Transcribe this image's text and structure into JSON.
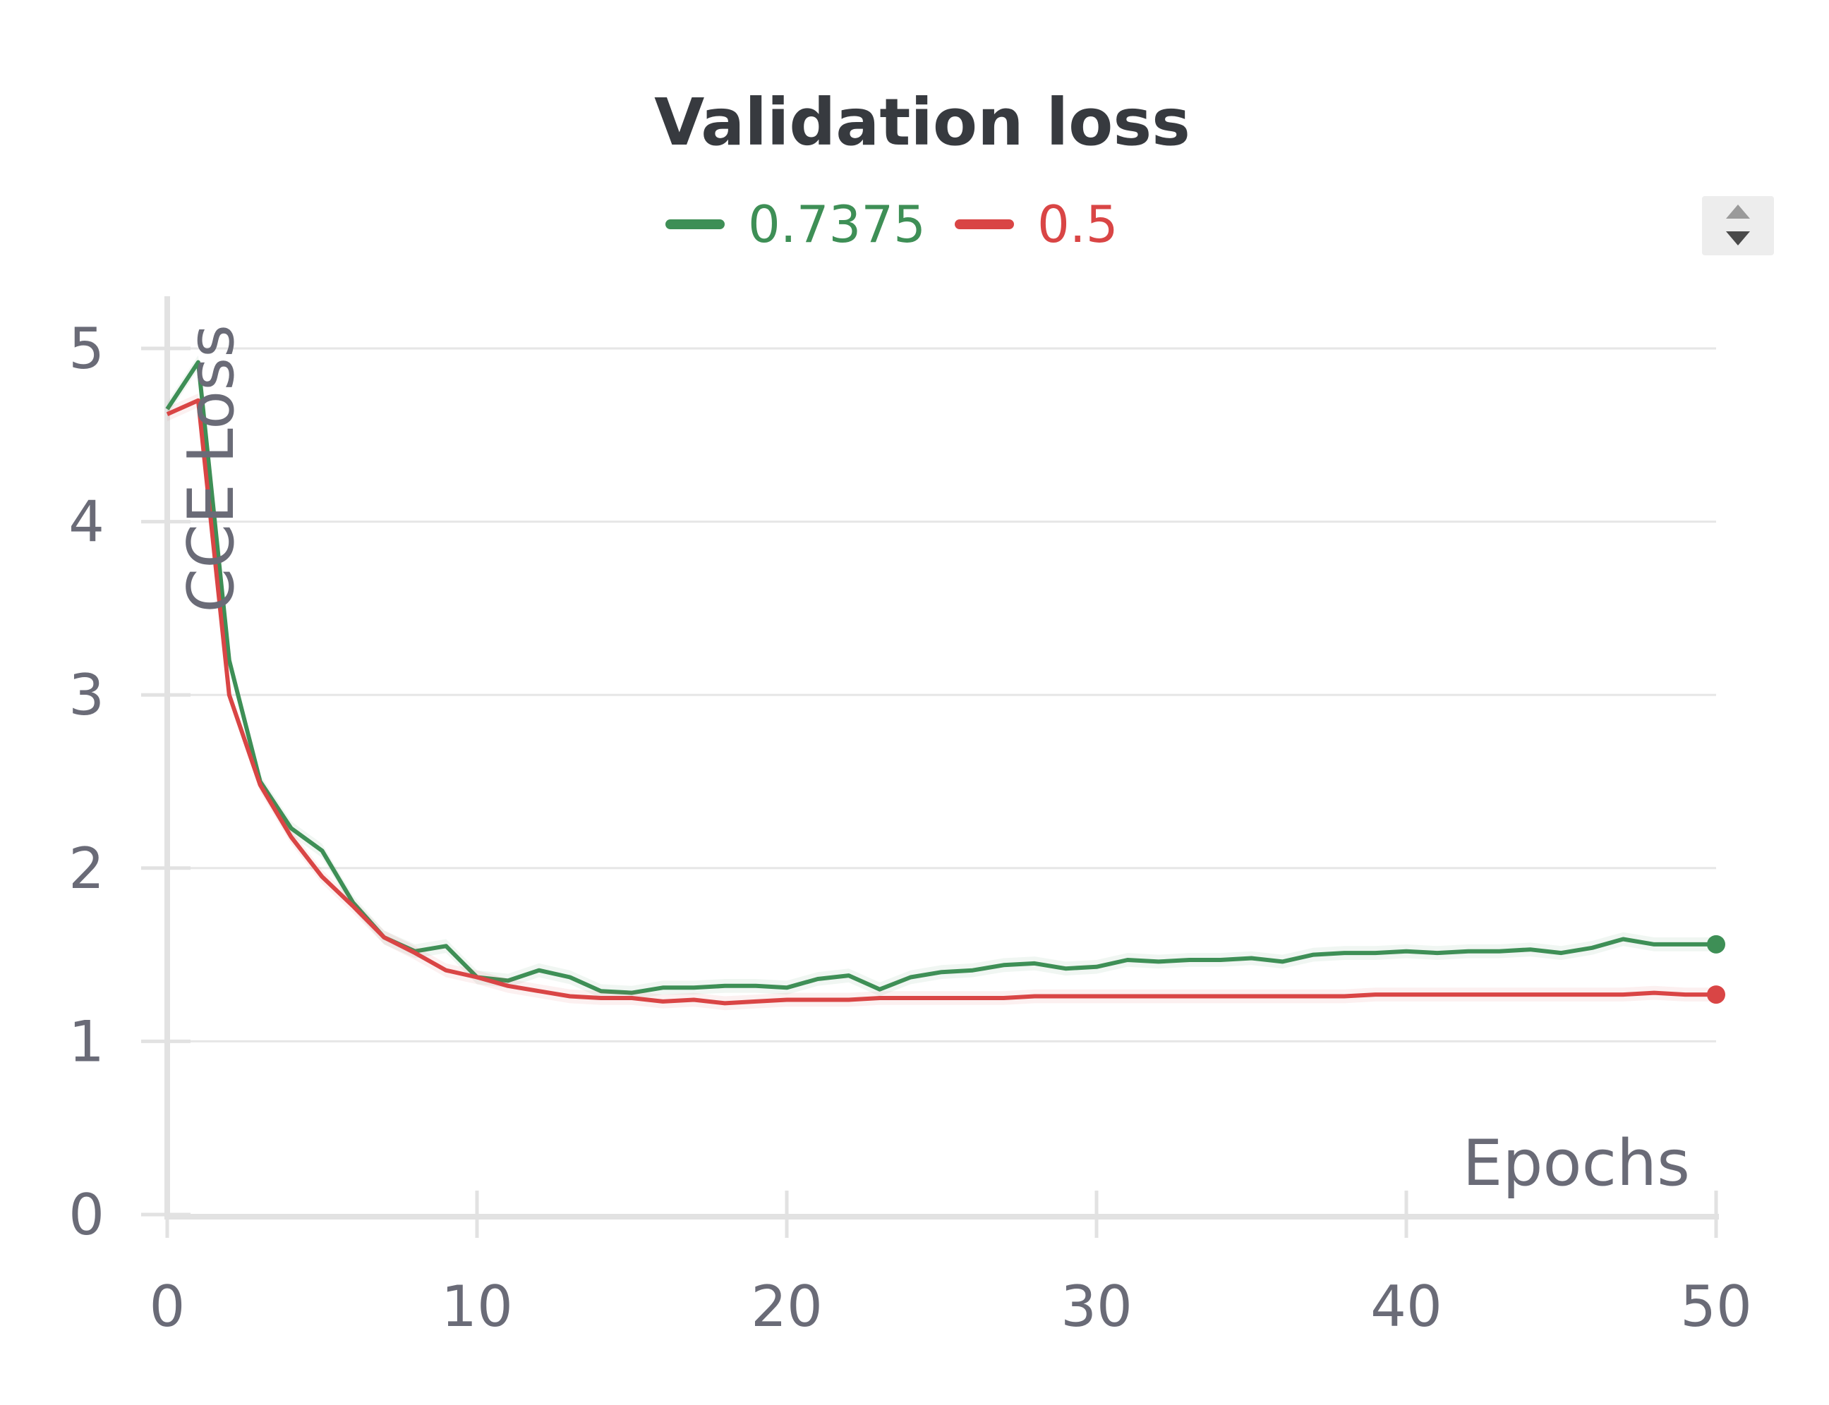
{
  "chart_data": {
    "type": "line",
    "title": "Validation loss",
    "xlabel": "Epochs",
    "ylabel": "CCE Loss",
    "xlim": [
      0,
      50
    ],
    "ylim": [
      0,
      5.3
    ],
    "x_ticks": [
      "0",
      "10",
      "20",
      "30",
      "40",
      "50"
    ],
    "y_ticks": [
      "0",
      "1",
      "2",
      "3",
      "4",
      "5"
    ],
    "grid": "horizontal",
    "legend": "top-center",
    "series": [
      {
        "name": "0.7375",
        "color": "#3e8f56",
        "x": [
          0,
          1,
          2,
          3,
          4,
          5,
          6,
          7,
          8,
          9,
          10,
          11,
          12,
          13,
          14,
          15,
          16,
          17,
          18,
          19,
          20,
          21,
          22,
          23,
          24,
          25,
          26,
          27,
          28,
          29,
          30,
          31,
          32,
          33,
          34,
          35,
          36,
          37,
          38,
          39,
          40,
          41,
          42,
          43,
          44,
          45,
          46,
          47,
          48,
          49,
          50
        ],
        "y": [
          4.65,
          4.92,
          3.2,
          2.5,
          2.23,
          2.1,
          1.8,
          1.6,
          1.52,
          1.55,
          1.37,
          1.35,
          1.41,
          1.37,
          1.29,
          1.28,
          1.31,
          1.31,
          1.32,
          1.32,
          1.31,
          1.36,
          1.38,
          1.3,
          1.37,
          1.4,
          1.41,
          1.44,
          1.45,
          1.42,
          1.43,
          1.47,
          1.46,
          1.47,
          1.47,
          1.48,
          1.46,
          1.5,
          1.51,
          1.51,
          1.52,
          1.51,
          1.52,
          1.52,
          1.53,
          1.51,
          1.54,
          1.59,
          1.56,
          1.56,
          1.56
        ]
      },
      {
        "name": "0.5",
        "color": "#d94545",
        "x": [
          0,
          1,
          2,
          3,
          4,
          5,
          6,
          7,
          8,
          9,
          10,
          11,
          12,
          13,
          14,
          15,
          16,
          17,
          18,
          19,
          20,
          21,
          22,
          23,
          24,
          25,
          26,
          27,
          28,
          29,
          30,
          31,
          32,
          33,
          34,
          35,
          36,
          37,
          38,
          39,
          40,
          41,
          42,
          43,
          44,
          45,
          46,
          47,
          48,
          49,
          50
        ],
        "y": [
          4.62,
          4.7,
          3.0,
          2.48,
          2.18,
          1.95,
          1.78,
          1.6,
          1.51,
          1.41,
          1.37,
          1.32,
          1.29,
          1.26,
          1.25,
          1.25,
          1.23,
          1.24,
          1.22,
          1.23,
          1.24,
          1.24,
          1.24,
          1.25,
          1.25,
          1.25,
          1.25,
          1.25,
          1.26,
          1.26,
          1.26,
          1.26,
          1.26,
          1.26,
          1.26,
          1.26,
          1.26,
          1.26,
          1.26,
          1.27,
          1.27,
          1.27,
          1.27,
          1.27,
          1.27,
          1.27,
          1.27,
          1.27,
          1.28,
          1.27,
          1.27
        ]
      }
    ]
  },
  "controls": {
    "legend_scroll": {
      "up_icon": "triangle-up-icon",
      "down_icon": "triangle-down-icon"
    }
  }
}
